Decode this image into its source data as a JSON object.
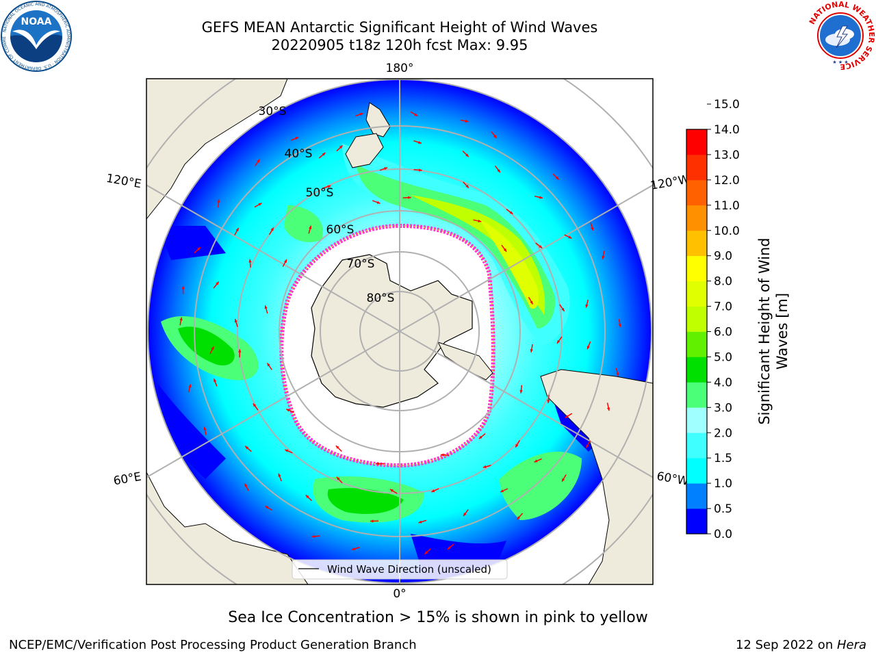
{
  "title": {
    "line1": "GEFS MEAN Antarctic Significant Height of Wind Waves",
    "line2": "20220905 t18z 120h fcst   Max: 9.95"
  },
  "logos": {
    "noaa": {
      "text": "NOAA",
      "ring_text": "NATIONAL OCEANIC AND ATMOSPHERIC ADMINISTRATION · U.S. DEPARTMENT OF COMMERCE",
      "color": "#0a5fa8"
    },
    "nws": {
      "ring_text": "NATIONAL WEATHER SERVICE",
      "color": "#e00000"
    }
  },
  "map": {
    "projection": "south polar stereographic",
    "longitude_labels": [
      "180°",
      "120°E",
      "120°W",
      "60°E",
      "60°W",
      "0°"
    ],
    "latitude_labels": [
      "30°S",
      "40°S",
      "50°S",
      "60°S",
      "70°S",
      "80°S"
    ],
    "ocean_color": "#0000ff",
    "land_color": "#efebdc",
    "ice_edge_color": "#ff33cc",
    "arrow_color": "#ff0000",
    "legend_label": "Wind Wave Direction (unscaled)"
  },
  "colorbar": {
    "title_line1": "Significant Height of Wind",
    "title_line2": "Waves [m]",
    "ticks": [
      "0.0",
      "0.5",
      "1.0",
      "1.5",
      "2.0",
      "3.0",
      "4.0",
      "5.0",
      "6.0",
      "7.0",
      "8.0",
      "9.0",
      "10.0",
      "11.0",
      "12.0",
      "13.0",
      "14.0",
      "15.0"
    ],
    "colors": [
      "#0000ff",
      "#0080ff",
      "#00ffff",
      "#40ffff",
      "#a0ffff",
      "#4cff78",
      "#00e000",
      "#60f000",
      "#c0ff00",
      "#e0ff00",
      "#ffff00",
      "#ffc000",
      "#ff9000",
      "#ff6000",
      "#ff3000",
      "#ff0000"
    ]
  },
  "note": "Sea Ice Concentration > 15% is shown in pink to yellow",
  "footer": {
    "left": "NCEP/EMC/Verification Post Processing Product Generation Branch",
    "right_prefix": "12 Sep 2022 on ",
    "right_host": "Hera"
  }
}
